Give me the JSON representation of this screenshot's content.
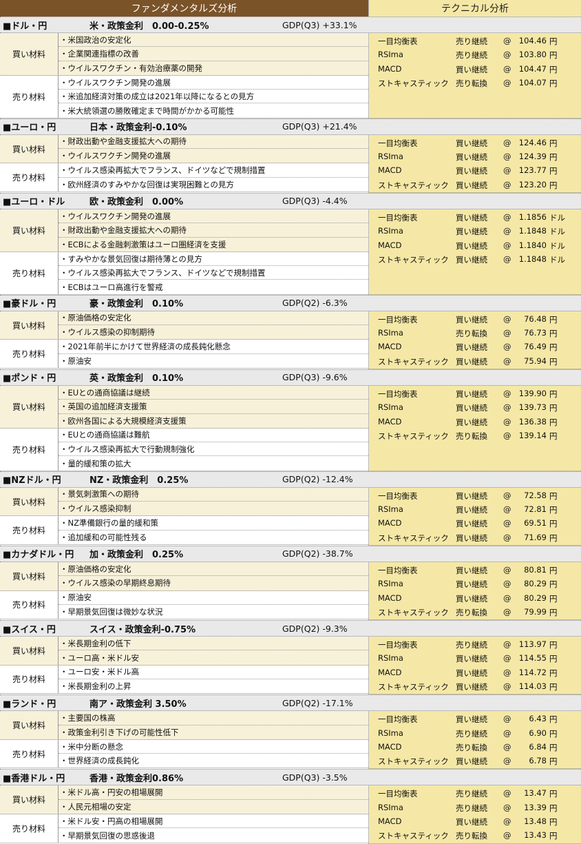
{
  "header": {
    "fundamental": "ファンダメンタルズ分析",
    "technical": "テクニカル分析"
  },
  "labels": {
    "buy": "買い材料",
    "sell": "売り材料",
    "at": "@"
  },
  "colors": {
    "header_brown": "#7b5328",
    "technical_bg": "#f5e8a6",
    "buy_bg": "#f7f1da",
    "section_bg": "#e9e9e9"
  },
  "sections": [
    {
      "pair": "■ドル・円",
      "rate": "米・政策金利　0.00-0.25%",
      "gdp": "GDP(Q3) +33.1%",
      "buy": [
        "・米国政治の安定化",
        "・企業関連指標の改善",
        "・ウイルスワクチン・有効治療薬の開発"
      ],
      "sell": [
        "・ウイルスワクチン開発の進展",
        "・米追加経済対策の成立は2021年以降になるとの見方",
        "・米大統領選の勝敗確定まで時間がかかる可能性"
      ],
      "tech": [
        [
          "一目均衡表",
          "売り継続",
          "104.46",
          "円"
        ],
        [
          "RSIma",
          "売り継続",
          "103.80",
          "円"
        ],
        [
          "MACD",
          "買い継続",
          "104.47",
          "円"
        ],
        [
          "ストキャスティック",
          "売り転換",
          "104.07",
          "円"
        ]
      ]
    },
    {
      "pair": "■ユーロ・円",
      "rate": "日本・政策金利-0.10%",
      "gdp": "GDP(Q3) +21.4%",
      "buy": [
        "・財政出動や金融支援拡大への期待",
        "・ウイルスワクチン開発の進展"
      ],
      "sell": [
        "・ウイルス感染再拡大でフランス、ドイツなどで規制措置",
        "・欧州経済のすみやかな回復は実現困難との見方"
      ],
      "tech": [
        [
          "一目均衡表",
          "買い継続",
          "124.46",
          "円"
        ],
        [
          "RSIma",
          "買い継続",
          "124.39",
          "円"
        ],
        [
          "MACD",
          "買い継続",
          "123.77",
          "円"
        ],
        [
          "ストキャスティック",
          "買い継続",
          "123.20",
          "円"
        ]
      ]
    },
    {
      "pair": "■ユーロ・ドル",
      "rate": "欧・政策金利　0.00%",
      "gdp": "GDP(Q3) -4.4%",
      "buy": [
        "・ウイルスワクチン開発の進展",
        "・財政出動や金融支援拡大への期待",
        "・ECBによる金融刺激策はユーロ圏経済を支援"
      ],
      "sell": [
        "・すみやかな景気回復は期待薄との見方",
        "・ウイルス感染再拡大でフランス、ドイツなどで規制措置",
        "・ECBはユーロ高進行を警戒"
      ],
      "tech": [
        [
          "一目均衡表",
          "買い継続",
          "1.1856",
          "ドル"
        ],
        [
          "RSIma",
          "買い継続",
          "1.1848",
          "ドル"
        ],
        [
          "MACD",
          "買い継続",
          "1.1840",
          "ドル"
        ],
        [
          "ストキャスティック",
          "買い継続",
          "1.1848",
          "ドル"
        ]
      ]
    },
    {
      "pair": "■豪ドル・円",
      "rate": "豪・政策金利　0.10%",
      "gdp": "GDP(Q2) -6.3%",
      "buy": [
        "・原油価格の安定化",
        "・ウイルス感染の抑制期待"
      ],
      "sell": [
        "・2021年前半にかけて世界経済の成長鈍化懸念",
        "・原油安"
      ],
      "tech": [
        [
          "一目均衡表",
          "買い継続",
          "76.48",
          "円"
        ],
        [
          "RSIma",
          "売り転換",
          "76.73",
          "円"
        ],
        [
          "MACD",
          "買い継続",
          "76.49",
          "円"
        ],
        [
          "ストキャスティック",
          "買い継続",
          "75.94",
          "円"
        ]
      ]
    },
    {
      "pair": "■ポンド・円",
      "rate": "英・政策金利　0.10%",
      "gdp": "GDP(Q3) -9.6%",
      "buy": [
        "・EUとの通商協議は継続",
        "・英国の追加経済支援策",
        "・欧州各国による大規模経済支援策"
      ],
      "sell": [
        "・EUとの通商協議は難航",
        "・ウイルス感染再拡大で行動規制強化",
        "・量的緩和策の拡大"
      ],
      "tech": [
        [
          "一目均衡表",
          "買い継続",
          "139.90",
          "円"
        ],
        [
          "RSIma",
          "買い継続",
          "139.73",
          "円"
        ],
        [
          "MACD",
          "買い継続",
          "136.38",
          "円"
        ],
        [
          "ストキャスティック",
          "売り転換",
          "139.14",
          "円"
        ]
      ]
    },
    {
      "pair": "■NZドル・円",
      "rate": "NZ・政策金利　0.25%",
      "gdp": "GDP(Q2) -12.4%",
      "buy": [
        "・景気刺激策への期待",
        "・ウイルス感染抑制"
      ],
      "sell": [
        "・NZ準備銀行の量的緩和策",
        "・追加緩和の可能性残る"
      ],
      "tech": [
        [
          "一目均衡表",
          "買い継続",
          "72.58",
          "円"
        ],
        [
          "RSIma",
          "買い継続",
          "72.81",
          "円"
        ],
        [
          "MACD",
          "買い継続",
          "69.51",
          "円"
        ],
        [
          "ストキャスティック",
          "買い継続",
          "71.69",
          "円"
        ]
      ]
    },
    {
      "pair": "■カナダドル・円",
      "rate": "加・政策金利　0.25%",
      "gdp": "GDP(Q2) -38.7%",
      "buy": [
        "・原油価格の安定化",
        "・ウイルス感染の早期終息期待"
      ],
      "sell": [
        "・原油安",
        "・早期景気回復は微妙な状況"
      ],
      "tech": [
        [
          "一目均衡表",
          "買い継続",
          "80.81",
          "円"
        ],
        [
          "RSIma",
          "買い継続",
          "80.29",
          "円"
        ],
        [
          "MACD",
          "買い継続",
          "80.29",
          "円"
        ],
        [
          "ストキャスティック",
          "売り転換",
          "79.99",
          "円"
        ]
      ]
    },
    {
      "pair": "■スイス・円",
      "rate": "スイス・政策金利-0.75%",
      "gdp": "GDP(Q2) -9.3%",
      "buy": [
        "・米長期金利の低下",
        "・ユーロ高・米ドル安"
      ],
      "sell": [
        "・ユーロ安・米ドル高",
        "・米長期金利の上昇"
      ],
      "tech": [
        [
          "一目均衡表",
          "売り継続",
          "113.97",
          "円"
        ],
        [
          "RSIma",
          "買い継続",
          "114.55",
          "円"
        ],
        [
          "MACD",
          "買い継続",
          "114.72",
          "円"
        ],
        [
          "ストキャスティック",
          "買い継続",
          "114.03",
          "円"
        ]
      ]
    },
    {
      "pair": "■ランド・円",
      "rate": "南ア・政策金利 3.50%",
      "gdp": "GDP(Q2) -17.1%",
      "buy": [
        "・主要国の株高",
        "・政策金利引き下げの可能性低下"
      ],
      "sell": [
        "・米中分断の懸念",
        "・世界経済の成長鈍化"
      ],
      "tech": [
        [
          "一目均衡表",
          "買い継続",
          "6.43",
          "円"
        ],
        [
          "RSIma",
          "売り継続",
          "6.90",
          "円"
        ],
        [
          "MACD",
          "売り転換",
          "6.84",
          "円"
        ],
        [
          "ストキャスティック",
          "買い継続",
          "6.78",
          "円"
        ]
      ]
    },
    {
      "pair": "■香港ドル・円",
      "rate": "香港・政策金利0.86%",
      "gdp": "GDP(Q3) -3.5%",
      "buy": [
        "・米ドル高・円安の相場展開",
        "・人民元相場の安定"
      ],
      "sell": [
        "・米ドル安・円高の相場展開",
        "・早期景気回復の思惑後退"
      ],
      "tech": [
        [
          "一目均衡表",
          "売り継続",
          "13.47",
          "円"
        ],
        [
          "RSIma",
          "売り継続",
          "13.39",
          "円"
        ],
        [
          "MACD",
          "買い継続",
          "13.48",
          "円"
        ],
        [
          "ストキャスティック",
          "売り転換",
          "13.43",
          "円"
        ]
      ]
    }
  ]
}
